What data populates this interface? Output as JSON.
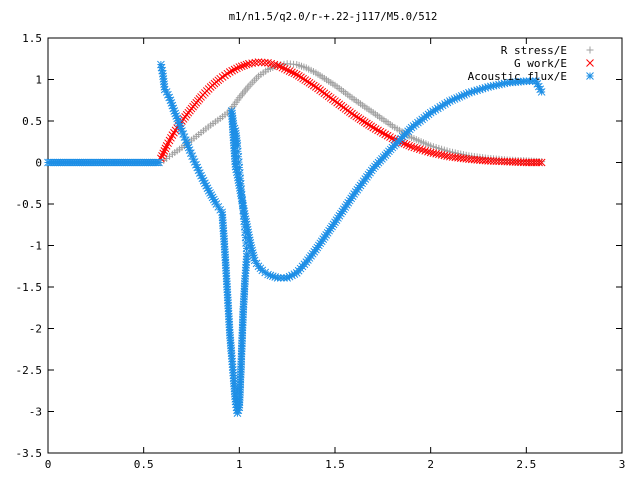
{
  "chart_data": {
    "type": "scatter",
    "title": "m1/n1.5/q2.0/r-+.22-j117/M5.0/512",
    "xlabel": "",
    "ylabel": "",
    "xlim": [
      0,
      3
    ],
    "ylim": [
      -3.5,
      1.5
    ],
    "xticks": [
      "0",
      "0.5",
      "1",
      "1.5",
      "2",
      "2.5",
      "3"
    ],
    "yticks": [
      "1.5",
      "1",
      "0.5",
      "0",
      "-0.5",
      "-1",
      "-1.5",
      "-2",
      "-2.5",
      "-3",
      "-3.5"
    ],
    "grid": false,
    "legend": "top-right",
    "series": [
      {
        "name": "R stress/E",
        "marker": "plus",
        "color": "#a0a0a0",
        "points": [
          [
            0.59,
            0.0
          ],
          [
            0.62,
            0.05
          ],
          [
            0.65,
            0.1
          ],
          [
            0.7,
            0.18
          ],
          [
            0.75,
            0.27
          ],
          [
            0.8,
            0.36
          ],
          [
            0.85,
            0.45
          ],
          [
            0.9,
            0.53
          ],
          [
            0.95,
            0.62
          ],
          [
            1.0,
            0.78
          ],
          [
            1.05,
            0.92
          ],
          [
            1.1,
            1.04
          ],
          [
            1.15,
            1.12
          ],
          [
            1.2,
            1.17
          ],
          [
            1.25,
            1.19
          ],
          [
            1.3,
            1.18
          ],
          [
            1.35,
            1.14
          ],
          [
            1.4,
            1.08
          ],
          [
            1.5,
            0.93
          ],
          [
            1.6,
            0.76
          ],
          [
            1.7,
            0.6
          ],
          [
            1.8,
            0.44
          ],
          [
            1.9,
            0.3
          ],
          [
            2.0,
            0.2
          ],
          [
            2.1,
            0.13
          ],
          [
            2.2,
            0.08
          ],
          [
            2.3,
            0.05
          ],
          [
            2.4,
            0.03
          ],
          [
            2.5,
            0.02
          ],
          [
            2.58,
            0.01
          ]
        ]
      },
      {
        "name": "G work/E",
        "marker": "cross",
        "color": "#ff0000",
        "points": [
          [
            0.59,
            0.05
          ],
          [
            0.62,
            0.2
          ],
          [
            0.65,
            0.33
          ],
          [
            0.7,
            0.5
          ],
          [
            0.75,
            0.65
          ],
          [
            0.8,
            0.79
          ],
          [
            0.85,
            0.91
          ],
          [
            0.9,
            1.01
          ],
          [
            0.95,
            1.09
          ],
          [
            1.0,
            1.15
          ],
          [
            1.05,
            1.19
          ],
          [
            1.1,
            1.21
          ],
          [
            1.15,
            1.2
          ],
          [
            1.2,
            1.17
          ],
          [
            1.3,
            1.06
          ],
          [
            1.4,
            0.91
          ],
          [
            1.5,
            0.74
          ],
          [
            1.6,
            0.57
          ],
          [
            1.7,
            0.42
          ],
          [
            1.8,
            0.29
          ],
          [
            1.9,
            0.19
          ],
          [
            2.0,
            0.12
          ],
          [
            2.1,
            0.07
          ],
          [
            2.2,
            0.04
          ],
          [
            2.3,
            0.02
          ],
          [
            2.4,
            0.01
          ],
          [
            2.5,
            0.0
          ],
          [
            2.58,
            0.0
          ]
        ]
      },
      {
        "name": "Acoustic flux/E",
        "marker": "star",
        "color": "#1e8fe6",
        "points": [
          [
            0.59,
            1.18
          ],
          [
            0.6,
            1.07
          ],
          [
            0.61,
            0.88
          ],
          [
            0.62,
            0.85
          ],
          [
            0.64,
            0.75
          ],
          [
            0.66,
            0.62
          ],
          [
            0.68,
            0.5
          ],
          [
            0.7,
            0.38
          ],
          [
            0.72,
            0.27
          ],
          [
            0.74,
            0.15
          ],
          [
            0.76,
            0.04
          ],
          [
            0.78,
            -0.06
          ],
          [
            0.8,
            -0.16
          ],
          [
            0.82,
            -0.25
          ],
          [
            0.84,
            -0.34
          ],
          [
            0.86,
            -0.42
          ],
          [
            0.88,
            -0.5
          ],
          [
            0.9,
            -0.57
          ],
          [
            0.91,
            -0.6
          ],
          [
            0.92,
            -0.92
          ],
          [
            0.93,
            -1.27
          ],
          [
            0.94,
            -1.66
          ],
          [
            0.95,
            -2.05
          ],
          [
            0.96,
            -2.33
          ],
          [
            0.97,
            -2.6
          ],
          [
            0.98,
            -2.88
          ],
          [
            0.99,
            -3.02
          ],
          [
            1.0,
            -2.95
          ],
          [
            1.01,
            -2.4
          ],
          [
            1.02,
            -1.8
          ],
          [
            1.03,
            -1.4
          ],
          [
            1.04,
            -1.1
          ],
          [
            0.99,
            0.2
          ],
          [
            0.98,
            0.38
          ],
          [
            0.97,
            0.44
          ],
          [
            0.96,
            0.62
          ],
          [
            0.97,
            0.27
          ],
          [
            0.98,
            -0.05
          ],
          [
            0.99,
            -0.15
          ],
          [
            1.01,
            -0.4
          ],
          [
            1.03,
            -0.65
          ],
          [
            1.06,
            -1.0
          ],
          [
            1.08,
            -1.18
          ],
          [
            1.1,
            -1.25
          ],
          [
            1.12,
            -1.3
          ],
          [
            1.15,
            -1.35
          ],
          [
            1.2,
            -1.39
          ],
          [
            1.25,
            -1.39
          ],
          [
            1.3,
            -1.33
          ],
          [
            1.35,
            -1.2
          ],
          [
            1.4,
            -1.05
          ],
          [
            1.5,
            -0.72
          ],
          [
            1.6,
            -0.38
          ],
          [
            1.7,
            -0.07
          ],
          [
            1.8,
            0.18
          ],
          [
            1.9,
            0.42
          ],
          [
            2.0,
            0.6
          ],
          [
            2.1,
            0.74
          ],
          [
            2.2,
            0.84
          ],
          [
            2.3,
            0.91
          ],
          [
            2.4,
            0.96
          ],
          [
            2.5,
            0.98
          ],
          [
            2.55,
            0.98
          ],
          [
            2.58,
            0.85
          ]
        ]
      }
    ]
  }
}
